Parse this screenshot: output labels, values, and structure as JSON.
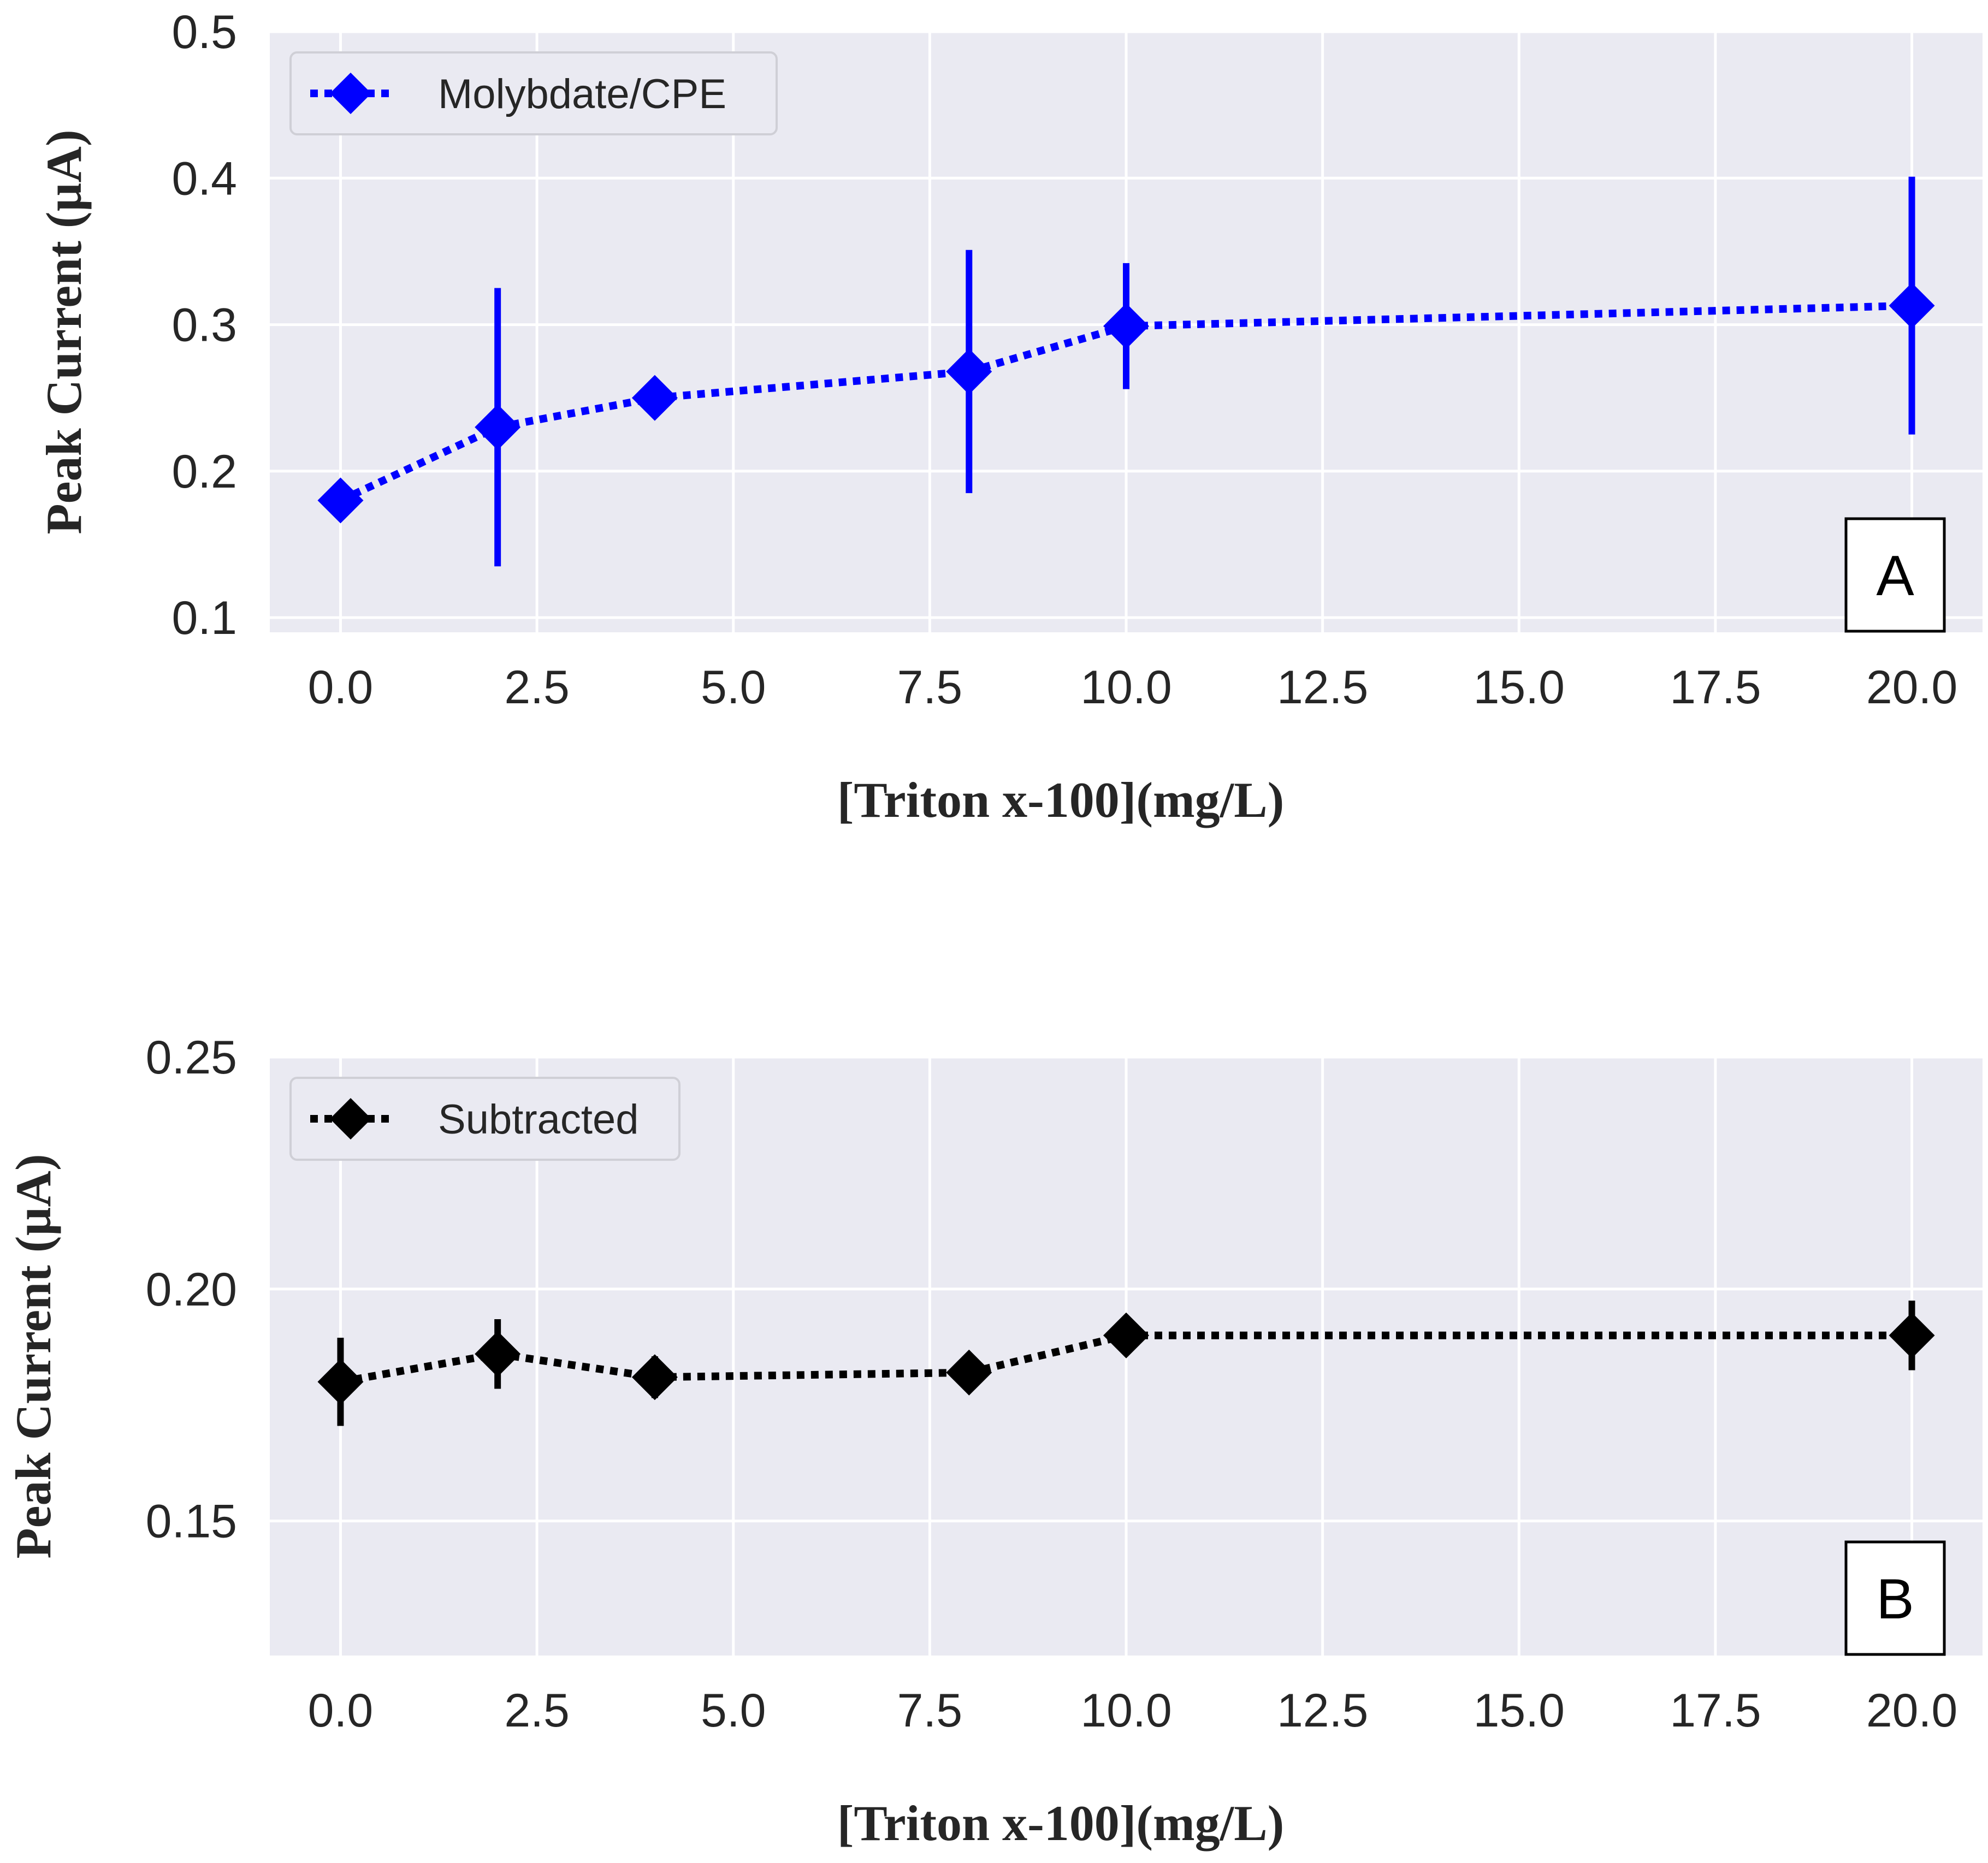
{
  "colors": {
    "panel_background": "#EAEAF2",
    "grid": "#FFFFFF",
    "series_a": "#0000FF",
    "series_b": "#000000"
  },
  "chart_data": [
    {
      "type": "line",
      "panel_label": "A",
      "title": "",
      "xlabel": "[Triton x-100](mg/L)",
      "ylabel": "Peak Current (µA)",
      "xlim": [
        -0.9,
        20.9
      ],
      "ylim": [
        0.09,
        0.5
      ],
      "xticks": [
        "0.0",
        "2.5",
        "5.0",
        "7.5",
        "10.0",
        "12.5",
        "15.0",
        "17.5",
        "20.0"
      ],
      "yticks": [
        "0.1",
        "0.2",
        "0.3",
        "0.4",
        "0.5"
      ],
      "grid": true,
      "legend_position": "top-left",
      "series": [
        {
          "name": "Molybdate/CPE",
          "color": "#0000FF",
          "marker": "diamond",
          "linestyle": "dotted",
          "x": [
            0,
            2,
            4,
            8,
            10,
            20
          ],
          "y": [
            0.18,
            0.23,
            0.25,
            0.268,
            0.299,
            0.313
          ],
          "yerr": [
            0,
            0.095,
            0,
            0.083,
            0.043,
            0.088
          ]
        }
      ]
    },
    {
      "type": "line",
      "panel_label": "B",
      "title": "",
      "xlabel": "[Triton x-100](mg/L)",
      "ylabel": "Peak Current (µA)",
      "xlim": [
        -0.9,
        20.9
      ],
      "ylim": [
        0.121,
        0.25
      ],
      "xticks": [
        "0.0",
        "2.5",
        "5.0",
        "7.5",
        "10.0",
        "12.5",
        "15.0",
        "17.5",
        "20.0"
      ],
      "yticks": [
        "0.15",
        "0.20",
        "0.25"
      ],
      "grid": true,
      "legend_position": "top-left",
      "series": [
        {
          "name": "Subtracted",
          "color": "#000000",
          "marker": "diamond",
          "linestyle": "dotted",
          "x": [
            0,
            2,
            4,
            8,
            10,
            20
          ],
          "y": [
            0.18,
            0.186,
            0.181,
            0.182,
            0.19,
            0.19
          ],
          "yerr": [
            0.0095,
            0.0075,
            0.0045,
            0,
            0,
            0.0075
          ]
        }
      ]
    }
  ]
}
